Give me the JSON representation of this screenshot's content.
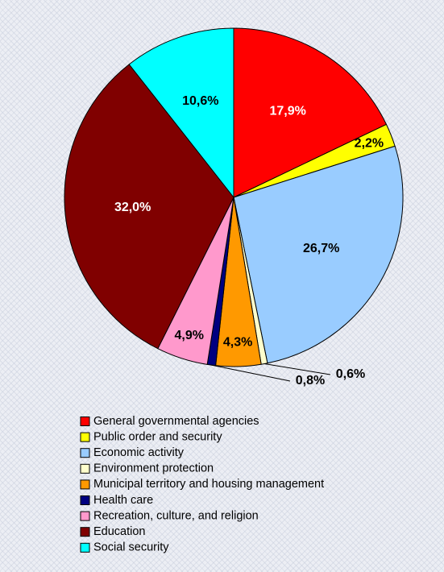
{
  "chart_data": {
    "type": "pie",
    "categories": [
      "General governmental agencies",
      "Public order and security",
      "Economic activity",
      "Environment protection",
      "Municipal territory and housing management",
      "Health care",
      "Recreation, culture, and religion",
      "Education",
      "Social security"
    ],
    "values": [
      17.9,
      2.2,
      26.7,
      0.6,
      4.3,
      0.8,
      4.9,
      32.0,
      10.6
    ],
    "value_labels": [
      "17,9%",
      "2,2%",
      "26,7%",
      "0,6%",
      "4,3%",
      "0,8%",
      "4,9%",
      "32,0%",
      "10,6%"
    ],
    "colors": [
      "#ff0000",
      "#ffff00",
      "#99ccff",
      "#ffffcc",
      "#ff9900",
      "#000080",
      "#ff99cc",
      "#800000",
      "#00ffff"
    ],
    "legend": "bottom"
  }
}
